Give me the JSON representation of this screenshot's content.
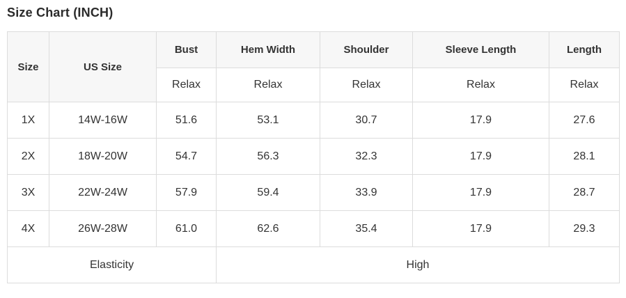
{
  "title": "Size Chart (INCH)",
  "colors": {
    "header_bg": "#f7f7f7",
    "us_size_cell_bg": "#474747",
    "us_size_cell_text": "#ffffff",
    "border": "#dcdcdc",
    "text": "#333333",
    "page_bg": "#ffffff"
  },
  "table": {
    "columns": [
      {
        "key": "size",
        "label": "Size",
        "sub": null
      },
      {
        "key": "us_size",
        "label": "US Size",
        "sub": null
      },
      {
        "key": "bust",
        "label": "Bust",
        "sub": "Relax"
      },
      {
        "key": "hem_width",
        "label": "Hem Width",
        "sub": "Relax"
      },
      {
        "key": "shoulder",
        "label": "Shoulder",
        "sub": "Relax"
      },
      {
        "key": "sleeve_length",
        "label": "Sleeve Length",
        "sub": "Relax"
      },
      {
        "key": "length",
        "label": "Length",
        "sub": "Relax"
      }
    ],
    "rows": [
      {
        "size": "1X",
        "us_size": "14W-16W",
        "bust": "51.6",
        "hem_width": "53.1",
        "shoulder": "30.7",
        "sleeve_length": "17.9",
        "length": "27.6"
      },
      {
        "size": "2X",
        "us_size": "18W-20W",
        "bust": "54.7",
        "hem_width": "56.3",
        "shoulder": "32.3",
        "sleeve_length": "17.9",
        "length": "28.1"
      },
      {
        "size": "3X",
        "us_size": "22W-24W",
        "bust": "57.9",
        "hem_width": "59.4",
        "shoulder": "33.9",
        "sleeve_length": "17.9",
        "length": "28.7"
      },
      {
        "size": "4X",
        "us_size": "26W-28W",
        "bust": "61.0",
        "hem_width": "62.6",
        "shoulder": "35.4",
        "sleeve_length": "17.9",
        "length": "29.3"
      }
    ],
    "footer": {
      "label": "Elasticity",
      "value": "High"
    }
  }
}
